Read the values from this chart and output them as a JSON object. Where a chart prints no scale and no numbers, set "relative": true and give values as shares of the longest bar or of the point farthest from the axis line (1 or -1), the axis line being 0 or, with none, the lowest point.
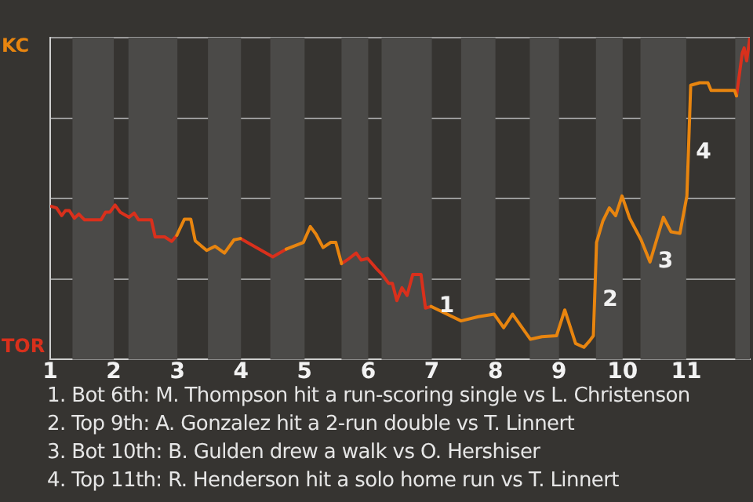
{
  "chart_data": {
    "type": "line",
    "relative": true,
    "x": [
      1.02,
      1.1,
      1.18,
      1.24,
      1.3,
      1.38,
      1.45,
      1.54,
      1.8,
      1.87,
      1.94,
      2.02,
      2.1,
      2.24,
      2.32,
      2.39,
      2.59,
      2.65,
      2.8,
      2.91,
      2.99,
      3.11,
      3.21,
      3.28,
      3.46,
      3.59,
      3.74,
      3.89,
      3.99,
      4.5,
      4.71,
      4.98,
      5.09,
      5.18,
      5.29,
      5.41,
      5.49,
      5.58,
      5.7,
      5.81,
      5.89,
      5.99,
      6.13,
      6.22,
      6.32,
      6.38,
      6.45,
      6.53,
      6.61,
      6.7,
      6.83,
      6.9,
      6.99,
      7.46,
      7.73,
      7.98,
      8.13,
      8.27,
      8.55,
      8.73,
      8.96,
      9.09,
      9.26,
      9.39,
      9.48,
      9.54,
      9.59,
      9.69,
      9.79,
      9.89,
      9.99,
      10.11,
      10.29,
      10.43,
      10.64,
      10.76,
      10.9,
      11.01,
      11.07,
      11.21,
      11.34,
      11.39,
      11.76,
      11.79,
      11.88,
      11.91,
      11.95,
      12.0
    ],
    "series": [
      {
        "color": "#e8850f",
        "values": [
          null,
          null,
          null,
          null,
          null,
          null,
          null,
          null,
          null,
          null,
          null,
          null,
          null,
          null,
          null,
          null,
          null,
          null,
          null,
          null,
          0.386,
          0.436,
          0.436,
          0.369,
          0.339,
          0.352,
          0.331,
          0.372,
          0.376,
          null,
          0.343,
          0.364,
          0.413,
          0.389,
          0.348,
          0.364,
          0.364,
          0.298,
          null,
          null,
          null,
          null,
          null,
          null,
          null,
          null,
          null,
          null,
          null,
          null,
          null,
          null,
          0.165,
          0.12,
          0.133,
          0.141,
          0.099,
          0.141,
          0.063,
          0.071,
          0.074,
          0.154,
          0.05,
          0.038,
          0.058,
          0.074,
          0.364,
          0.431,
          0.471,
          0.447,
          0.508,
          0.439,
          0.372,
          0.303,
          0.442,
          0.397,
          0.392,
          0.508,
          0.852,
          0.86,
          0.86,
          0.836,
          0.836,
          0.819,
          null,
          null,
          null,
          null
        ]
      },
      {
        "color": "#d9301c",
        "values": [
          0.476,
          0.471,
          0.447,
          0.463,
          0.463,
          0.439,
          0.452,
          0.434,
          0.434,
          0.458,
          0.458,
          0.48,
          0.458,
          0.442,
          0.455,
          0.434,
          0.434,
          0.381,
          0.381,
          0.367,
          0.386,
          null,
          null,
          null,
          null,
          null,
          null,
          null,
          0.376,
          0.319,
          0.343,
          null,
          null,
          null,
          null,
          null,
          null,
          0.298,
          0.314,
          0.331,
          0.309,
          0.314,
          0.282,
          0.264,
          0.237,
          0.237,
          0.183,
          0.223,
          0.199,
          0.264,
          0.264,
          0.16,
          0.165,
          null,
          null,
          null,
          null,
          null,
          null,
          null,
          null,
          null,
          null,
          null,
          null,
          null,
          null,
          null,
          null,
          null,
          null,
          null,
          null,
          null,
          null,
          null,
          null,
          null,
          null,
          null,
          null,
          null,
          null,
          0.819,
          0.952,
          0.968,
          0.928,
          1
        ]
      }
    ],
    "xlim": [
      1,
      12
    ],
    "xticks": [
      1,
      2,
      3,
      4,
      5,
      6,
      7,
      8,
      9,
      10,
      11
    ],
    "grid": "y",
    "marker": "none",
    "line_style": "solid",
    "bands": [
      {
        "axis": "x",
        "from": 1.35,
        "to": 2,
        "color": "#4b4a48"
      },
      {
        "axis": "x",
        "from": 2.23,
        "to": 3,
        "color": "#4b4a48"
      },
      {
        "axis": "x",
        "from": 3.48,
        "to": 4,
        "color": "#4b4a48"
      },
      {
        "axis": "x",
        "from": 4.46,
        "to": 5,
        "color": "#4b4a48"
      },
      {
        "axis": "x",
        "from": 5.58,
        "to": 6,
        "color": "#4b4a48"
      },
      {
        "axis": "x",
        "from": 6.21,
        "to": 7,
        "color": "#4b4a48"
      },
      {
        "axis": "x",
        "from": 7.46,
        "to": 8,
        "color": "#4b4a48"
      },
      {
        "axis": "x",
        "from": 8.54,
        "to": 9,
        "color": "#4b4a48"
      },
      {
        "axis": "x",
        "from": 9.58,
        "to": 10,
        "color": "#4b4a48"
      },
      {
        "axis": "x",
        "from": 10.28,
        "to": 11,
        "color": "#4b4a48"
      },
      {
        "axis": "x",
        "from": 11.77,
        "to": 12,
        "color": "#4b4a48"
      }
    ],
    "annotations": [
      "KC",
      "TOR",
      {
        "text": "1",
        "x": 6.99,
        "y": 0.165
      },
      {
        "text": "2",
        "x": 9.56,
        "y": 0.184
      },
      {
        "text": "3",
        "x": 10.43,
        "y": 0.303
      },
      {
        "text": "4",
        "x": 11.03,
        "y": 0.643
      },
      "1. Bot 6th: M. Thompson hit a run-scoring single vs L. Christenson",
      "2. Top 9th: A. Gonzalez hit a 2-run double vs T. Linnert",
      "3. Bot 10th: B. Gulden drew a walk vs O. Hershiser",
      "4. Top 11th: R. Henderson hit a solo home run vs T. Linnert"
    ]
  }
}
